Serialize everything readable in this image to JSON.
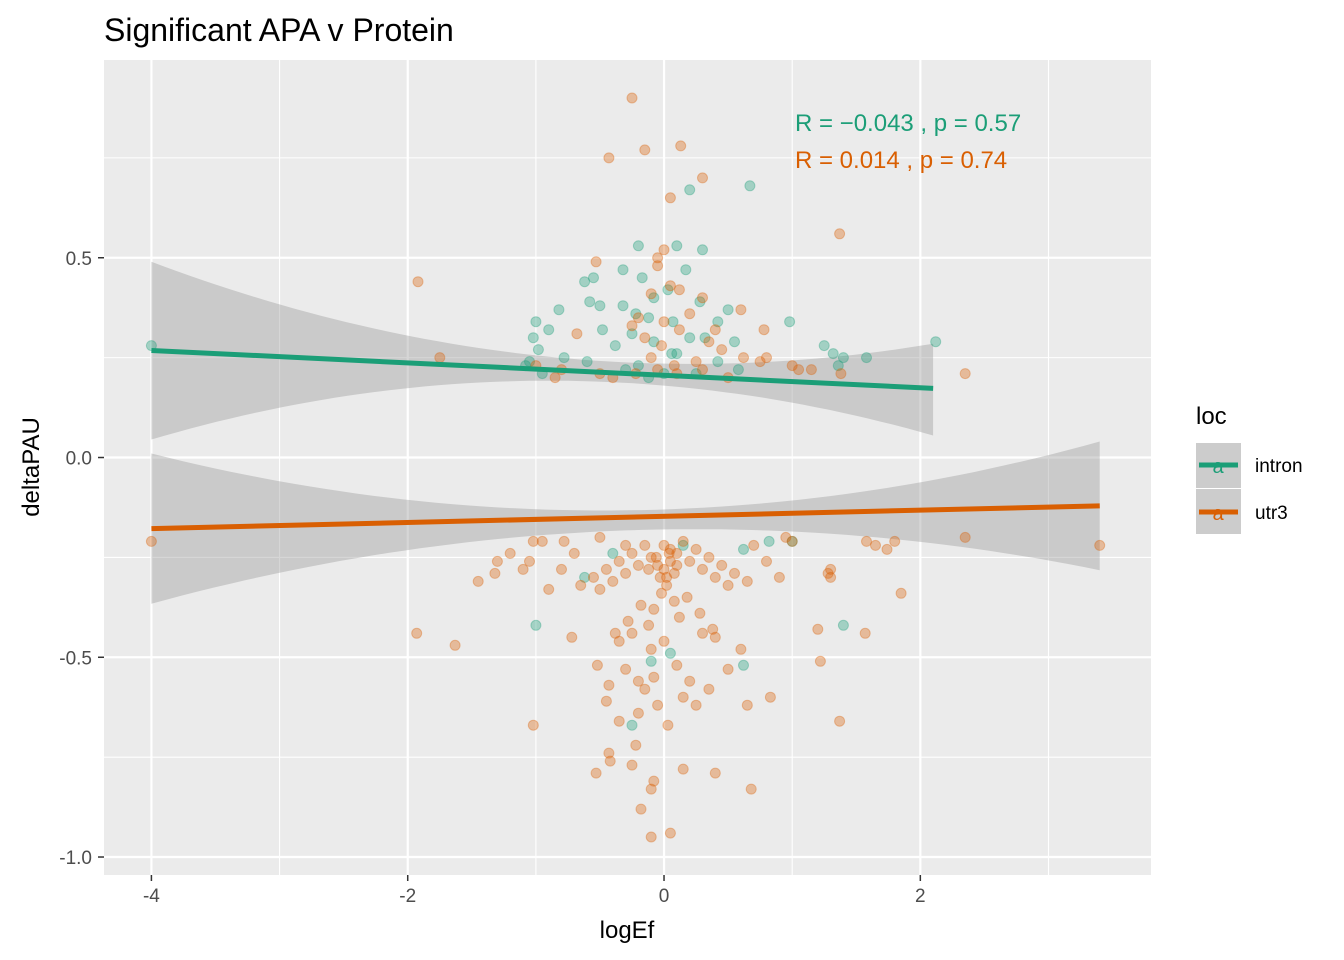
{
  "chart_data": {
    "type": "scatter",
    "title": "Significant APA v Protein",
    "xlabel": "logEf",
    "ylabel": "deltaPAU",
    "xlim": [
      -4.37,
      3.8
    ],
    "ylim": [
      -1.045,
      0.995
    ],
    "x_ticks": [
      -4,
      -2,
      0,
      2
    ],
    "x_tick_labels": [
      "-4",
      "-2",
      "0",
      "2"
    ],
    "y_ticks": [
      -1.0,
      -0.5,
      0.0,
      0.5
    ],
    "y_tick_labels": [
      "-1.0",
      "-0.5",
      "0.0",
      "0.5"
    ],
    "grid": true,
    "legend": {
      "title": "loc",
      "position": "right",
      "items": [
        {
          "label": "intron",
          "color": "#1b9e77",
          "key_glyph": "a"
        },
        {
          "label": "utr3",
          "color": "#d95f02",
          "key_glyph": "a"
        }
      ]
    },
    "annotations": [
      {
        "text": "R = −0.043 , p = 0.57",
        "series": "intron",
        "color": "#1b9e77"
      },
      {
        "text": "R = 0.014 , p = 0.74",
        "series": "utr3",
        "color": "#d95f02"
      }
    ],
    "series": [
      {
        "name": "intron",
        "color": "#1b9e77",
        "regression": {
          "x": [
            -4.0,
            2.1
          ],
          "y": [
            0.268,
            0.173
          ],
          "ci_upper": [
            0.49,
            0.235,
            0.285
          ],
          "ci_lower": [
            0.045,
            0.18,
            0.055
          ],
          "ci_x": [
            -4.0,
            0.0,
            2.1
          ]
        },
        "points": [
          [
            -4.0,
            0.28
          ],
          [
            2.12,
            0.29
          ],
          [
            0.67,
            0.68
          ],
          [
            0.2,
            0.67
          ],
          [
            0.1,
            0.53
          ],
          [
            -0.2,
            0.53
          ],
          [
            0.3,
            0.52
          ],
          [
            0.17,
            0.47
          ],
          [
            -0.32,
            0.47
          ],
          [
            -0.17,
            0.45
          ],
          [
            -0.55,
            0.45
          ],
          [
            -0.62,
            0.44
          ],
          [
            -0.82,
            0.37
          ],
          [
            0.03,
            0.42
          ],
          [
            -0.08,
            0.4
          ],
          [
            0.28,
            0.39
          ],
          [
            -0.58,
            0.39
          ],
          [
            -0.32,
            0.38
          ],
          [
            -0.5,
            0.38
          ],
          [
            0.5,
            0.37
          ],
          [
            -0.22,
            0.36
          ],
          [
            -0.12,
            0.35
          ],
          [
            0.07,
            0.34
          ],
          [
            0.42,
            0.34
          ],
          [
            0.98,
            0.34
          ],
          [
            -1.0,
            0.34
          ],
          [
            -0.9,
            0.32
          ],
          [
            -0.48,
            0.32
          ],
          [
            -0.25,
            0.31
          ],
          [
            0.2,
            0.3
          ],
          [
            -1.02,
            0.3
          ],
          [
            0.32,
            0.3
          ],
          [
            0.55,
            0.29
          ],
          [
            -0.08,
            0.29
          ],
          [
            1.25,
            0.28
          ],
          [
            -0.38,
            0.28
          ],
          [
            -0.98,
            0.27
          ],
          [
            0.1,
            0.26
          ],
          [
            1.32,
            0.26
          ],
          [
            0.06,
            0.26
          ],
          [
            -0.78,
            0.25
          ],
          [
            1.4,
            0.25
          ],
          [
            1.58,
            0.25
          ],
          [
            -1.05,
            0.24
          ],
          [
            0.42,
            0.24
          ],
          [
            -0.6,
            0.24
          ],
          [
            -1.08,
            0.23
          ],
          [
            -0.2,
            0.23
          ],
          [
            1.36,
            0.23
          ],
          [
            0.58,
            0.22
          ],
          [
            -0.95,
            0.21
          ],
          [
            -0.3,
            0.22
          ],
          [
            0.0,
            0.21
          ],
          [
            0.25,
            0.21
          ],
          [
            -0.12,
            0.2
          ],
          [
            -0.62,
            -0.3
          ],
          [
            0.82,
            -0.21
          ],
          [
            1.0,
            -0.21
          ],
          [
            0.62,
            -0.23
          ],
          [
            -1.0,
            -0.42
          ],
          [
            1.4,
            -0.42
          ],
          [
            0.05,
            -0.49
          ],
          [
            -0.1,
            -0.51
          ],
          [
            0.62,
            -0.52
          ],
          [
            -0.25,
            -0.67
          ],
          [
            0.15,
            -0.22
          ],
          [
            -0.4,
            -0.24
          ]
        ]
      },
      {
        "name": "utr3",
        "color": "#d95f02",
        "regression": {
          "x": [
            -4.0,
            3.4
          ],
          "y": [
            -0.178,
            -0.121
          ],
          "ci_upper": [
            0.01,
            -0.13,
            0.04
          ],
          "ci_lower": [
            -0.366,
            -0.18,
            -0.282
          ],
          "ci_x": [
            -4.0,
            0.0,
            3.4
          ]
        },
        "points": [
          [
            -0.25,
            0.9
          ],
          [
            0.13,
            0.78
          ],
          [
            -0.43,
            0.75
          ],
          [
            -0.15,
            0.77
          ],
          [
            0.3,
            0.7
          ],
          [
            0.05,
            0.65
          ],
          [
            1.37,
            0.56
          ],
          [
            -0.05,
            0.5
          ],
          [
            0.0,
            0.52
          ],
          [
            -0.53,
            0.49
          ],
          [
            -1.92,
            0.44
          ],
          [
            -0.05,
            0.48
          ],
          [
            0.12,
            0.42
          ],
          [
            0.05,
            0.43
          ],
          [
            -0.1,
            0.41
          ],
          [
            0.3,
            0.4
          ],
          [
            0.6,
            0.37
          ],
          [
            0.78,
            0.32
          ],
          [
            0.2,
            0.36
          ],
          [
            -0.2,
            0.35
          ],
          [
            0.4,
            0.32
          ],
          [
            0.0,
            0.34
          ],
          [
            -0.25,
            0.33
          ],
          [
            0.12,
            0.32
          ],
          [
            -0.68,
            0.31
          ],
          [
            -0.15,
            0.3
          ],
          [
            0.35,
            0.29
          ],
          [
            -0.02,
            0.28
          ],
          [
            0.45,
            0.27
          ],
          [
            -1.75,
            0.25
          ],
          [
            0.8,
            0.25
          ],
          [
            0.75,
            0.24
          ],
          [
            -0.1,
            0.25
          ],
          [
            0.25,
            0.24
          ],
          [
            0.62,
            0.25
          ],
          [
            1.0,
            0.23
          ],
          [
            1.05,
            0.22
          ],
          [
            1.15,
            0.22
          ],
          [
            1.38,
            0.21
          ],
          [
            2.35,
            0.21
          ],
          [
            -0.8,
            0.22
          ],
          [
            -0.5,
            0.21
          ],
          [
            0.08,
            0.23
          ],
          [
            -0.22,
            0.21
          ],
          [
            0.1,
            0.21
          ],
          [
            -0.05,
            0.22
          ],
          [
            -1.0,
            0.23
          ],
          [
            0.3,
            0.22
          ],
          [
            -0.4,
            0.2
          ],
          [
            0.5,
            0.2
          ],
          [
            -0.85,
            0.2
          ],
          [
            -4.0,
            -0.21
          ],
          [
            3.4,
            -0.22
          ],
          [
            2.35,
            -0.2
          ],
          [
            1.58,
            -0.21
          ],
          [
            1.65,
            -0.22
          ],
          [
            1.74,
            -0.23
          ],
          [
            1.8,
            -0.21
          ],
          [
            -1.02,
            -0.21
          ],
          [
            -0.95,
            -0.21
          ],
          [
            -0.78,
            -0.21
          ],
          [
            1.0,
            -0.21
          ],
          [
            0.95,
            -0.2
          ],
          [
            -1.2,
            -0.24
          ],
          [
            -1.3,
            -0.26
          ],
          [
            -1.05,
            -0.26
          ],
          [
            -1.1,
            -0.28
          ],
          [
            -1.32,
            -0.29
          ],
          [
            -1.45,
            -0.31
          ],
          [
            1.3,
            -0.28
          ],
          [
            1.28,
            -0.29
          ],
          [
            1.85,
            -0.34
          ],
          [
            1.3,
            -0.3
          ],
          [
            -0.5,
            -0.2
          ],
          [
            -0.3,
            -0.22
          ],
          [
            0.0,
            -0.22
          ],
          [
            0.05,
            -0.23
          ],
          [
            0.1,
            -0.24
          ],
          [
            -0.1,
            -0.25
          ],
          [
            0.2,
            -0.26
          ],
          [
            -0.2,
            -0.27
          ],
          [
            0.3,
            -0.28
          ],
          [
            -0.3,
            -0.29
          ],
          [
            0.4,
            -0.3
          ],
          [
            -0.4,
            -0.31
          ],
          [
            0.5,
            -0.32
          ],
          [
            -0.5,
            -0.33
          ],
          [
            0.15,
            -0.21
          ],
          [
            -0.15,
            -0.22
          ],
          [
            0.25,
            -0.23
          ],
          [
            -0.25,
            -0.24
          ],
          [
            0.35,
            -0.25
          ],
          [
            -0.35,
            -0.26
          ],
          [
            0.45,
            -0.27
          ],
          [
            -0.45,
            -0.28
          ],
          [
            0.55,
            -0.29
          ],
          [
            -0.55,
            -0.3
          ],
          [
            0.65,
            -0.31
          ],
          [
            -0.65,
            -0.32
          ],
          [
            0.02,
            -0.3
          ],
          [
            -0.02,
            -0.34
          ],
          [
            0.08,
            -0.36
          ],
          [
            -0.08,
            -0.38
          ],
          [
            0.12,
            -0.4
          ],
          [
            -0.12,
            -0.42
          ],
          [
            0.7,
            -0.22
          ],
          [
            -0.7,
            -0.24
          ],
          [
            0.8,
            -0.26
          ],
          [
            -0.8,
            -0.28
          ],
          [
            0.9,
            -0.3
          ],
          [
            -0.9,
            -0.33
          ],
          [
            0.18,
            -0.35
          ],
          [
            -0.18,
            -0.37
          ],
          [
            0.28,
            -0.39
          ],
          [
            -0.28,
            -0.41
          ],
          [
            0.38,
            -0.43
          ],
          [
            -0.38,
            -0.44
          ],
          [
            1.2,
            -0.43
          ],
          [
            1.57,
            -0.44
          ],
          [
            -1.93,
            -0.44
          ],
          [
            -1.63,
            -0.47
          ],
          [
            -0.25,
            -0.44
          ],
          [
            0.3,
            -0.44
          ],
          [
            -0.72,
            -0.45
          ],
          [
            0.0,
            -0.46
          ],
          [
            0.4,
            -0.45
          ],
          [
            -0.35,
            -0.46
          ],
          [
            0.6,
            -0.48
          ],
          [
            -0.1,
            -0.48
          ],
          [
            1.22,
            -0.51
          ],
          [
            -0.52,
            -0.52
          ],
          [
            0.1,
            -0.52
          ],
          [
            -0.3,
            -0.53
          ],
          [
            0.5,
            -0.53
          ],
          [
            -0.08,
            -0.55
          ],
          [
            -0.2,
            -0.56
          ],
          [
            0.2,
            -0.56
          ],
          [
            -0.15,
            -0.58
          ],
          [
            -0.43,
            -0.57
          ],
          [
            0.35,
            -0.58
          ],
          [
            -0.45,
            -0.61
          ],
          [
            0.15,
            -0.6
          ],
          [
            0.83,
            -0.6
          ],
          [
            0.25,
            -0.62
          ],
          [
            -0.05,
            -0.62
          ],
          [
            -0.2,
            -0.64
          ],
          [
            0.65,
            -0.62
          ],
          [
            -1.02,
            -0.67
          ],
          [
            1.37,
            -0.66
          ],
          [
            -0.35,
            -0.66
          ],
          [
            0.03,
            -0.67
          ],
          [
            -0.22,
            -0.72
          ],
          [
            -0.43,
            -0.74
          ],
          [
            -0.42,
            -0.76
          ],
          [
            -0.25,
            -0.77
          ],
          [
            0.15,
            -0.78
          ],
          [
            -0.53,
            -0.79
          ],
          [
            0.4,
            -0.79
          ],
          [
            -0.08,
            -0.81
          ],
          [
            -0.1,
            -0.83
          ],
          [
            0.68,
            -0.83
          ],
          [
            -0.18,
            -0.88
          ],
          [
            0.05,
            -0.94
          ],
          [
            -0.1,
            -0.95
          ],
          [
            0.0,
            -0.28
          ],
          [
            0.05,
            -0.26
          ],
          [
            -0.05,
            -0.27
          ],
          [
            0.08,
            -0.29
          ],
          [
            -0.03,
            -0.3
          ],
          [
            0.02,
            -0.32
          ],
          [
            -0.06,
            -0.25
          ],
          [
            0.04,
            -0.24
          ],
          [
            0.1,
            -0.27
          ],
          [
            -0.12,
            -0.28
          ]
        ]
      }
    ]
  }
}
